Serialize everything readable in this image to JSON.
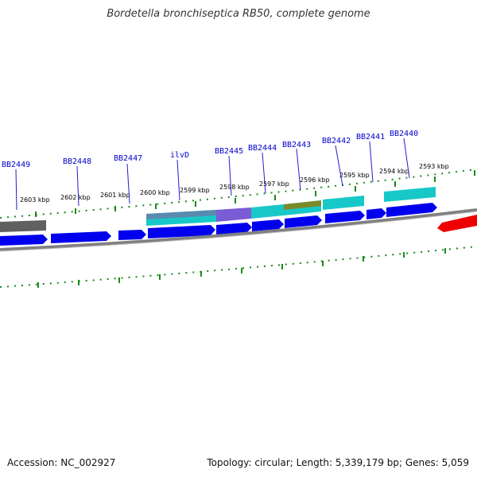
{
  "title": "Bordetella bronchiseptica RB50, complete genome",
  "footer": {
    "accession": "Accession: NC_002927",
    "summary": "Topology: circular; Length: 5,339,179 bp; Genes: 5,059"
  },
  "ruler_labels": [
    "2603 kbp",
    "2602 kbp",
    "2601 kbp",
    "2600 kbp",
    "2599 kbp",
    "2598 kbp",
    "2597 kbp",
    "2596 kbp",
    "2595 kbp",
    "2594 kbp",
    "2593 kbp"
  ],
  "gene_labels": [
    "BB2449",
    "BB2448",
    "BB2447",
    "ilvD",
    "BB2445",
    "BB2444",
    "BB2443",
    "BB2442",
    "BB2441",
    "BB2440"
  ],
  "colors": {
    "gene_forward": "#0000ee",
    "gene_reverse": "#ee0000",
    "feature_gray": "#606060",
    "feature_cyan": "#18c8c8",
    "feature_purple": "#7a5cd6",
    "feature_olive": "#7a8a2a",
    "label_blue": "#0000cc",
    "tick_green": "#1a8a1a",
    "backbone": "#808080"
  }
}
